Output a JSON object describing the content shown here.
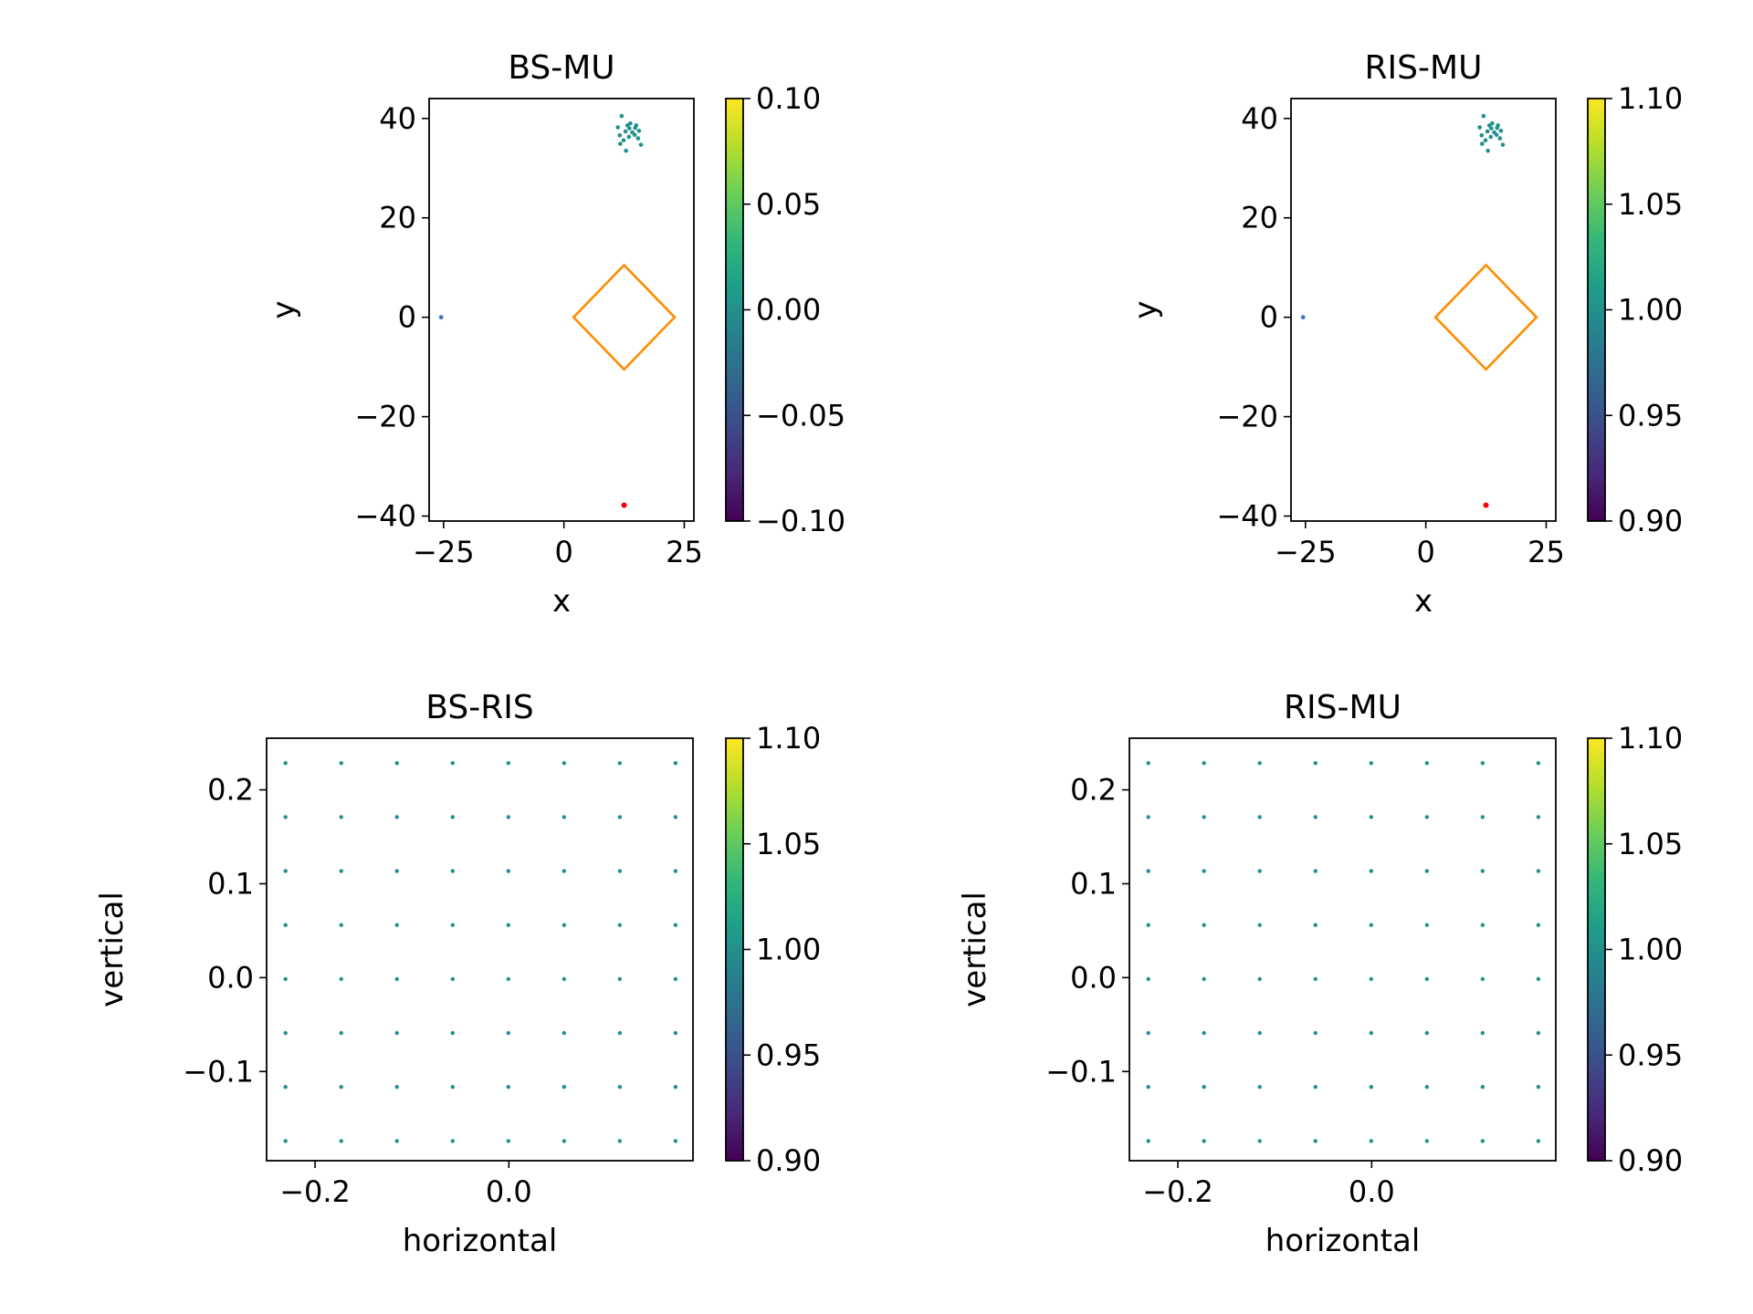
{
  "colormap": [
    "#440154",
    "#482878",
    "#3e4989",
    "#31688e",
    "#26828e",
    "#1f9e89",
    "#35b779",
    "#6ece58",
    "#b5de2b",
    "#fde725"
  ],
  "chart_data": [
    {
      "type": "scatter",
      "title": "BS-MU",
      "xlabel": "x",
      "ylabel": "y",
      "xlim": [
        -28,
        27
      ],
      "ylim": [
        -41,
        44
      ],
      "xticks": [
        -25,
        0,
        25
      ],
      "xtick_labels": [
        "−25",
        "0",
        "25"
      ],
      "yticks": [
        -40,
        -20,
        0,
        20,
        40
      ],
      "ytick_labels": [
        "−40",
        "−20",
        "0",
        "20",
        "40"
      ],
      "colorbar": {
        "range": [
          -0.1,
          0.1
        ],
        "ticks": [
          -0.1,
          -0.05,
          0.0,
          0.05,
          0.1
        ],
        "tick_labels": [
          "−0.10",
          "−0.05",
          "0.00",
          "0.05",
          "0.10"
        ]
      },
      "users_color": "#21918c",
      "users": [
        [
          12.0,
          40.5
        ],
        [
          13.8,
          39.0
        ],
        [
          15.0,
          38.6
        ],
        [
          11.2,
          38.2
        ],
        [
          13.6,
          38.0
        ],
        [
          12.8,
          37.4
        ],
        [
          14.2,
          37.2
        ],
        [
          15.6,
          37.5
        ],
        [
          11.6,
          36.6
        ],
        [
          13.5,
          36.3
        ],
        [
          14.7,
          36.7
        ],
        [
          12.4,
          35.6
        ],
        [
          11.7,
          34.9
        ],
        [
          16.0,
          34.7
        ],
        [
          12.9,
          33.5
        ],
        [
          15.4,
          36.0
        ],
        [
          13.2,
          38.6
        ],
        [
          14.8,
          38.1
        ]
      ],
      "bs": {
        "x": -25.5,
        "y": 0,
        "color": "#4472c4"
      },
      "target": {
        "x": 12.5,
        "y": -37.8,
        "color": "#ff0000"
      },
      "ris_area": {
        "vertices": [
          [
            2,
            0
          ],
          [
            12.5,
            10.5
          ],
          [
            23,
            0
          ],
          [
            12.5,
            -10.5
          ]
        ],
        "color": "#ff8c00"
      }
    },
    {
      "type": "scatter",
      "title": "RIS-MU",
      "xlabel": "x",
      "ylabel": "y",
      "xlim": [
        -28,
        27
      ],
      "ylim": [
        -41,
        44
      ],
      "xticks": [
        -25,
        0,
        25
      ],
      "xtick_labels": [
        "−25",
        "0",
        "25"
      ],
      "yticks": [
        -40,
        -20,
        0,
        20,
        40
      ],
      "ytick_labels": [
        "−40",
        "−20",
        "0",
        "20",
        "40"
      ],
      "colorbar": {
        "range": [
          0.9,
          1.1
        ],
        "ticks": [
          0.9,
          0.95,
          1.0,
          1.05,
          1.1
        ],
        "tick_labels": [
          "0.90",
          "0.95",
          "1.00",
          "1.05",
          "1.10"
        ]
      },
      "users_color": "#21918c",
      "users": [
        [
          12.0,
          40.5
        ],
        [
          13.8,
          39.0
        ],
        [
          15.0,
          38.6
        ],
        [
          11.2,
          38.2
        ],
        [
          13.6,
          38.0
        ],
        [
          12.8,
          37.4
        ],
        [
          14.2,
          37.2
        ],
        [
          15.6,
          37.5
        ],
        [
          11.6,
          36.6
        ],
        [
          13.5,
          36.3
        ],
        [
          14.7,
          36.7
        ],
        [
          12.4,
          35.6
        ],
        [
          11.7,
          34.9
        ],
        [
          16.0,
          34.7
        ],
        [
          12.9,
          33.5
        ],
        [
          15.4,
          36.0
        ],
        [
          13.2,
          38.6
        ],
        [
          14.8,
          38.1
        ]
      ],
      "bs": {
        "x": -25.5,
        "y": 0,
        "color": "#4472c4"
      },
      "target": {
        "x": 12.5,
        "y": -37.8,
        "color": "#ff0000"
      },
      "ris_area": {
        "vertices": [
          [
            2,
            0
          ],
          [
            12.5,
            10.5
          ],
          [
            23,
            0
          ],
          [
            12.5,
            -10.5
          ]
        ],
        "color": "#ff8c00"
      }
    },
    {
      "type": "scatter",
      "title": "BS-RIS",
      "xlabel": "horizontal",
      "ylabel": "vertical",
      "xlim": [
        -0.25,
        0.19
      ],
      "ylim": [
        -0.195,
        0.255
      ],
      "xticks": [
        -0.2,
        0.0
      ],
      "xtick_labels": [
        "−0.2",
        "0.0"
      ],
      "yticks": [
        -0.1,
        0.0,
        0.1,
        0.2
      ],
      "ytick_labels": [
        "−0.1",
        "0.0",
        "0.1",
        "0.2"
      ],
      "colorbar": {
        "range": [
          0.9,
          1.1
        ],
        "ticks": [
          0.9,
          0.95,
          1.0,
          1.05,
          1.1
        ],
        "tick_labels": [
          "0.90",
          "0.95",
          "1.00",
          "1.05",
          "1.10"
        ]
      },
      "points_color": "#21918c",
      "grid_x": [
        -0.2305,
        -0.173,
        -0.1155,
        -0.058,
        -0.0005,
        0.057,
        0.1145,
        0.172
      ],
      "grid_y": [
        -0.174,
        -0.1165,
        -0.059,
        -0.0015,
        0.056,
        0.1135,
        0.171,
        0.2285
      ]
    },
    {
      "type": "scatter",
      "title": "RIS-MU",
      "xlabel": "horizontal",
      "ylabel": "vertical",
      "xlim": [
        -0.25,
        0.19
      ],
      "ylim": [
        -0.195,
        0.255
      ],
      "xticks": [
        -0.2,
        0.0
      ],
      "xtick_labels": [
        "−0.2",
        "0.0"
      ],
      "yticks": [
        -0.1,
        0.0,
        0.1,
        0.2
      ],
      "ytick_labels": [
        "−0.1",
        "0.0",
        "0.1",
        "0.2"
      ],
      "colorbar": {
        "range": [
          0.9,
          1.1
        ],
        "ticks": [
          0.9,
          0.95,
          1.0,
          1.05,
          1.1
        ],
        "tick_labels": [
          "0.90",
          "0.95",
          "1.00",
          "1.05",
          "1.10"
        ]
      },
      "points_color": "#21918c",
      "grid_x": [
        -0.2305,
        -0.173,
        -0.1155,
        -0.058,
        -0.0005,
        0.057,
        0.1145,
        0.172
      ],
      "grid_y": [
        -0.174,
        -0.1165,
        -0.059,
        -0.0015,
        0.056,
        0.1135,
        0.171,
        0.2285
      ]
    }
  ]
}
